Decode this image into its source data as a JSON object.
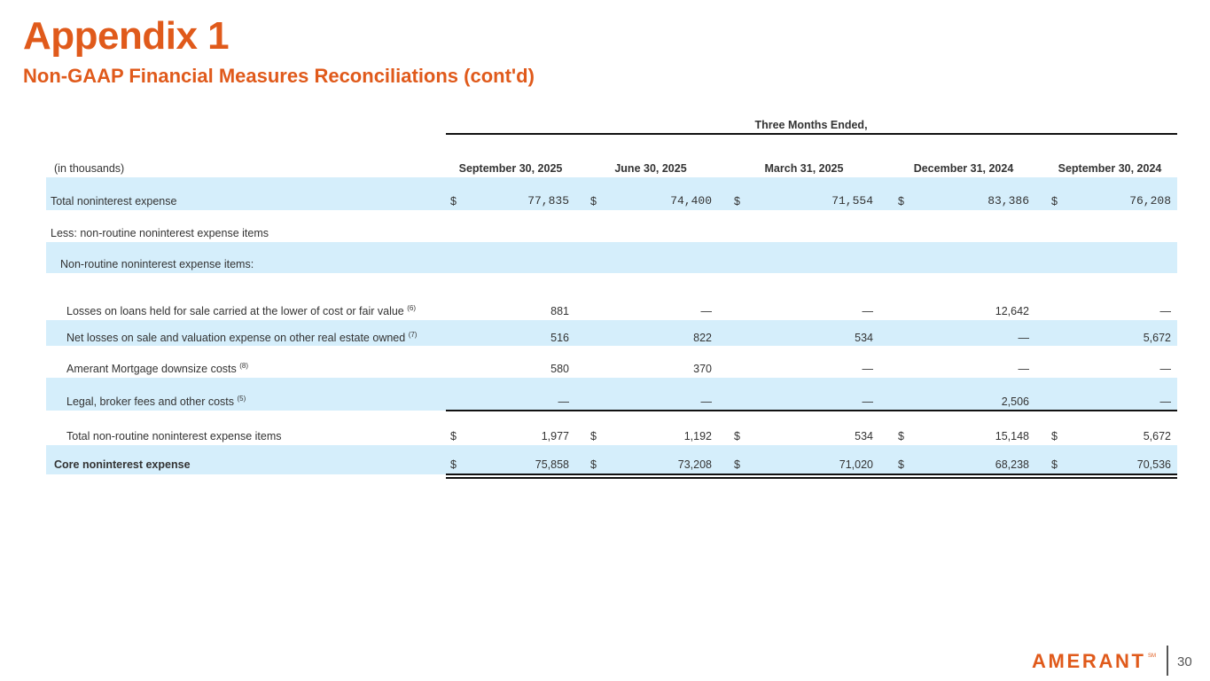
{
  "header": {
    "title": "Appendix 1",
    "subtitle": "Non-GAAP Financial Measures Reconciliations (cont'd)"
  },
  "table": {
    "group_header": "Three Months Ended,",
    "units_label": "(in thousands)",
    "columns": [
      "September 30, 2025",
      "June 30, 2025",
      "March 31, 2025",
      "December 31, 2024",
      "September 30, 2024"
    ],
    "rows": {
      "total_noninterest": {
        "label": "Total noninterest expense",
        "currency": "$",
        "values": [
          "77,835",
          "74,400",
          "71,554",
          "83,386",
          "76,208"
        ]
      },
      "less_label": {
        "label": "Less: non-routine noninterest expense items"
      },
      "nonroutine_label": {
        "label": "Non-routine noninterest expense items:"
      },
      "losses_loans": {
        "label": "Losses on loans held for sale carried at the lower of cost or fair value",
        "note": "(6)",
        "values": [
          "881",
          "—",
          "—",
          "12,642",
          "—"
        ]
      },
      "net_losses_oreo": {
        "label": "Net losses on sale and valuation expense on other real estate owned",
        "note": "(7)",
        "values": [
          "516",
          "822",
          "534",
          "—",
          "5,672"
        ]
      },
      "mortgage_downsize": {
        "label": "Amerant Mortgage downsize costs",
        "note": "(8)",
        "values": [
          "580",
          "370",
          "—",
          "—",
          "—"
        ]
      },
      "legal_broker": {
        "label": "Legal, broker fees and other costs",
        "note": "(5)",
        "values": [
          "—",
          "—",
          "—",
          "2,506",
          "—"
        ]
      },
      "total_nonroutine": {
        "label": "Total non-routine noninterest expense items",
        "currency": "$",
        "values": [
          "1,977",
          "1,192",
          "534",
          "15,148",
          "5,672"
        ]
      },
      "core_noninterest": {
        "label": "Core noninterest expense",
        "currency": "$",
        "values": [
          "75,858",
          "73,208",
          "71,020",
          "68,238",
          "70,536"
        ]
      }
    }
  },
  "footer": {
    "logo_text": "AMERANT",
    "logo_mark": "SM",
    "page_number": "30"
  },
  "colors": {
    "accent": "#e05a1b",
    "band": "#d5eefb",
    "text": "#333333"
  }
}
